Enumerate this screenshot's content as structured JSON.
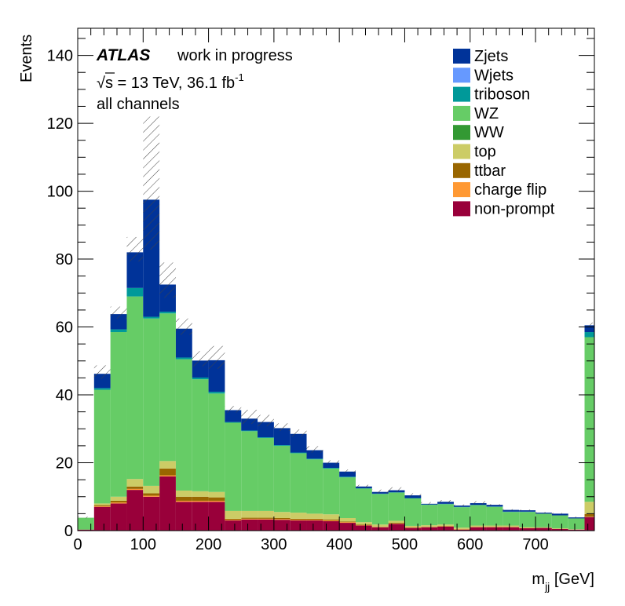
{
  "chart_data": {
    "type": "bar",
    "stacked": true,
    "xlabel_main": "m",
    "xlabel_sub": "jj",
    "xlabel_unit": " [GeV]",
    "ylabel": "Events",
    "xlim": [
      0,
      790
    ],
    "ylim": [
      0,
      148
    ],
    "xticks": [
      0,
      100,
      200,
      300,
      400,
      500,
      600,
      700
    ],
    "yticks": [
      0,
      20,
      40,
      60,
      80,
      100,
      120,
      140
    ],
    "bin_edges": [
      0,
      25,
      50,
      75,
      100,
      125,
      150,
      175,
      200,
      225,
      250,
      275,
      300,
      325,
      350,
      375,
      400,
      425,
      450,
      475,
      500,
      525,
      550,
      575,
      600,
      625,
      650,
      675,
      700,
      725,
      750,
      775,
      790
    ],
    "series": [
      {
        "name": "non-prompt",
        "color": "#99003a",
        "values": [
          0.3,
          7,
          8,
          12,
          10,
          16,
          8.5,
          8.5,
          8.5,
          3,
          3.3,
          3.3,
          3.2,
          3,
          3,
          2.8,
          2.3,
          1.5,
          1,
          2,
          0.8,
          1,
          1.2,
          0.3,
          1,
          1,
          1,
          0.7,
          0.8,
          0.5,
          0.3,
          4
        ]
      },
      {
        "name": "charge flip",
        "color": "#ff9933",
        "values": [
          0,
          0.2,
          0.3,
          0.3,
          0.3,
          0.3,
          0.3,
          0.3,
          0.3,
          0.2,
          0.2,
          0.2,
          0.2,
          0.2,
          0.2,
          0.2,
          0.2,
          0.1,
          0.1,
          0.1,
          0.1,
          0.1,
          0.1,
          0.1,
          0.1,
          0.1,
          0.1,
          0.1,
          0,
          0,
          0,
          0.1
        ]
      },
      {
        "name": "ttbar",
        "color": "#996600",
        "values": [
          0,
          0.3,
          0.5,
          0.7,
          0.7,
          2,
          1.2,
          1.2,
          1,
          0.3,
          0.3,
          0.3,
          0.3,
          0.3,
          0.3,
          0.3,
          0.2,
          0.2,
          0.1,
          0.2,
          0.1,
          0.1,
          0.1,
          0.1,
          0.1,
          0.1,
          0.1,
          0,
          0,
          0,
          0,
          0.8
        ]
      },
      {
        "name": "top",
        "color": "#cccc66",
        "values": [
          0,
          0.5,
          1.2,
          2.2,
          2.2,
          2.2,
          1.8,
          1.6,
          1.6,
          2.3,
          2,
          2,
          1.8,
          1.8,
          1.5,
          1.5,
          1,
          0.7,
          0.6,
          0.6,
          0.4,
          0.4,
          0.4,
          0.4,
          0.3,
          0.3,
          0.3,
          0.2,
          0.2,
          0.2,
          0.1,
          3.6
        ]
      },
      {
        "name": "WW",
        "color": "#339933",
        "values": [
          0,
          0,
          0,
          0,
          0,
          0,
          0,
          0,
          0,
          0,
          0,
          0,
          0,
          0,
          0,
          0,
          0,
          0,
          0,
          0,
          0,
          0,
          0,
          0,
          0,
          0,
          0,
          0,
          0,
          0,
          0,
          0
        ]
      },
      {
        "name": "WZ",
        "color": "#66cc66",
        "values": [
          3.5,
          33.5,
          48.5,
          53.8,
          49.3,
          43.5,
          38.7,
          33,
          29,
          26,
          23.5,
          21.5,
          19.5,
          17.5,
          16,
          13.5,
          12,
          9.9,
          9,
          8.3,
          8.1,
          6,
          6,
          6,
          6,
          5.5,
          4,
          4.5,
          4,
          3.8,
          3.2,
          48.5
        ]
      },
      {
        "name": "triboson",
        "color": "#009999",
        "values": [
          0,
          0.5,
          0.8,
          2.5,
          0.5,
          0.5,
          0.5,
          0.5,
          0.5,
          0.2,
          0.2,
          0.2,
          0.2,
          0.2,
          0.2,
          0.2,
          0.2,
          0.1,
          0.1,
          0.1,
          0.1,
          0.1,
          0.1,
          0.1,
          0.1,
          0.1,
          0.1,
          0.1,
          0,
          0,
          0,
          1.5
        ]
      },
      {
        "name": "Wjets",
        "color": "#6699ff",
        "values": [
          0,
          0,
          0,
          0,
          0,
          0,
          0,
          0,
          0,
          0,
          0,
          0,
          0,
          0,
          0,
          0,
          0,
          0,
          0,
          0,
          0,
          0,
          0,
          0,
          0,
          0,
          0,
          0,
          0,
          0,
          0,
          0
        ]
      },
      {
        "name": "Zjets",
        "color": "#003399",
        "values": [
          0,
          4.2,
          4.5,
          10.5,
          34.5,
          8,
          8.5,
          5,
          9.3,
          3.5,
          3.5,
          4.5,
          5,
          5.5,
          2.5,
          1.5,
          1.5,
          0.5,
          0.5,
          0.6,
          0.8,
          0.2,
          0.6,
          0.4,
          0.5,
          0.5,
          0.5,
          0.4,
          0.3,
          0.5,
          0.3,
          2
        ]
      }
    ],
    "uncertainty_up": [
      0.3,
      2.5,
      2.2,
      4.5,
      24.5,
      6.5,
      3,
      2.8,
      4.2,
      1.2,
      2.6,
      2.1,
      1.4,
      1.3,
      1.2,
      0.7,
      0.6,
      0.5,
      0.7,
      0.9,
      0.6,
      0.5,
      0.5,
      0.3,
      0.6,
      0.2,
      0.2,
      0.2,
      0.2,
      0.2,
      0.2,
      0.8
    ],
    "legend": [
      "Zjets",
      "Wjets",
      "triboson",
      "WZ",
      "WW",
      "top",
      "ttbar",
      "charge flip",
      "non-prompt"
    ],
    "legend_position": "top-right",
    "annotations": {
      "experiment": "ATLAS",
      "status": "work in progress",
      "sqrt_s_label": "s",
      "energy_lumi": " = 13 TeV, 36.1 fb",
      "lumi_exp": "-1",
      "channel": "all channels"
    },
    "colors": {
      "Zjets": "#003399",
      "Wjets": "#6699ff",
      "triboson": "#009999",
      "WZ": "#66cc66",
      "WW": "#339933",
      "top": "#cccc66",
      "ttbar": "#996600",
      "charge flip": "#ff9933",
      "non-prompt": "#99003a"
    }
  }
}
